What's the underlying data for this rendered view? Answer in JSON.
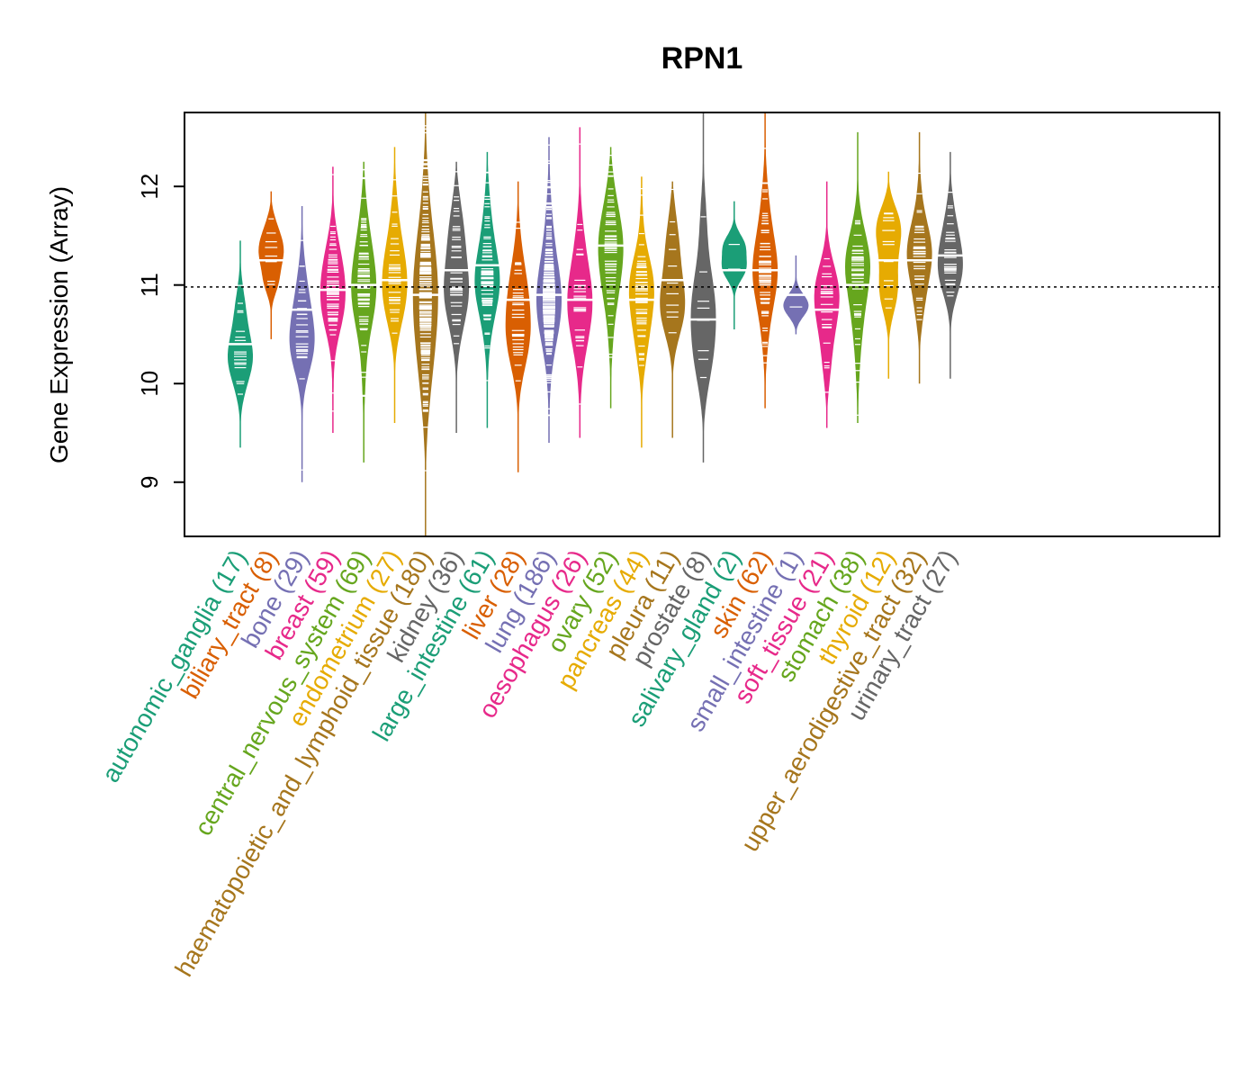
{
  "chart_data": {
    "type": "beanplot",
    "title": "RPN1",
    "xlabel": "",
    "ylabel": "Gene Expression (Array)",
    "ylim": [
      8.45,
      12.75
    ],
    "yticks": [
      9,
      10,
      11,
      12
    ],
    "reference_line": 10.98,
    "grid": false,
    "groups": [
      {
        "label": "autonomic_ganglia (17)",
        "color": "#1b9e77",
        "n": 17,
        "median": 10.4,
        "min": 9.35,
        "max": 11.45
      },
      {
        "label": "biliary_tract (8)",
        "color": "#d95f02",
        "n": 8,
        "median": 11.25,
        "min": 10.45,
        "max": 11.95
      },
      {
        "label": "bone (29)",
        "color": "#7570b3",
        "n": 29,
        "median": 10.75,
        "min": 9.0,
        "max": 11.8
      },
      {
        "label": "breast (59)",
        "color": "#e7298a",
        "n": 59,
        "median": 10.95,
        "min": 9.5,
        "max": 12.2
      },
      {
        "label": "central_nervous_system (69)",
        "color": "#66a61e",
        "n": 69,
        "median": 11.0,
        "min": 9.2,
        "max": 12.25
      },
      {
        "label": "endometrium (27)",
        "color": "#e6ab02",
        "n": 27,
        "median": 11.05,
        "min": 9.6,
        "max": 12.4
      },
      {
        "label": "haematopoietic_and_lymphoid_tissue (180)",
        "color": "#a6761d",
        "n": 180,
        "median": 10.9,
        "min": 8.45,
        "max": 12.75
      },
      {
        "label": "kidney (36)",
        "color": "#666666",
        "n": 36,
        "median": 11.15,
        "min": 9.5,
        "max": 12.25
      },
      {
        "label": "large_intestine (61)",
        "color": "#1b9e77",
        "n": 61,
        "median": 11.2,
        "min": 9.55,
        "max": 12.35
      },
      {
        "label": "liver (28)",
        "color": "#d95f02",
        "n": 28,
        "median": 10.85,
        "min": 9.1,
        "max": 12.05
      },
      {
        "label": "lung (186)",
        "color": "#7570b3",
        "n": 186,
        "median": 10.9,
        "min": 9.4,
        "max": 12.5
      },
      {
        "label": "oesophagus (26)",
        "color": "#e7298a",
        "n": 26,
        "median": 10.85,
        "min": 9.45,
        "max": 12.6
      },
      {
        "label": "ovary (52)",
        "color": "#66a61e",
        "n": 52,
        "median": 11.4,
        "min": 9.75,
        "max": 12.4
      },
      {
        "label": "pancreas (44)",
        "color": "#e6ab02",
        "n": 44,
        "median": 10.85,
        "min": 9.35,
        "max": 12.1
      },
      {
        "label": "pleura (11)",
        "color": "#a6761d",
        "n": 11,
        "median": 11.05,
        "min": 9.45,
        "max": 12.05
      },
      {
        "label": "prostate (8)",
        "color": "#666666",
        "n": 8,
        "median": 10.65,
        "min": 9.2,
        "max": 12.75
      },
      {
        "label": "salivary_gland (2)",
        "color": "#1b9e77",
        "n": 2,
        "median": 11.15,
        "min": 10.55,
        "max": 11.85
      },
      {
        "label": "skin (62)",
        "color": "#d95f02",
        "n": 62,
        "median": 11.15,
        "min": 9.75,
        "max": 12.75
      },
      {
        "label": "small_intestine (1)",
        "color": "#7570b3",
        "n": 1,
        "median": 10.9,
        "min": 10.5,
        "max": 11.3
      },
      {
        "label": "soft_tissue (21)",
        "color": "#e7298a",
        "n": 21,
        "median": 10.75,
        "min": 9.55,
        "max": 12.05
      },
      {
        "label": "stomach (38)",
        "color": "#66a61e",
        "n": 38,
        "median": 11.0,
        "min": 9.6,
        "max": 12.55
      },
      {
        "label": "thyroid (12)",
        "color": "#e6ab02",
        "n": 12,
        "median": 11.25,
        "min": 10.05,
        "max": 12.15
      },
      {
        "label": "upper_aerodigestive_tract (32)",
        "color": "#a6761d",
        "n": 32,
        "median": 11.25,
        "min": 10.0,
        "max": 12.55
      },
      {
        "label": "urinary_tract (27)",
        "color": "#666666",
        "n": 27,
        "median": 11.3,
        "min": 10.05,
        "max": 12.35
      }
    ]
  }
}
